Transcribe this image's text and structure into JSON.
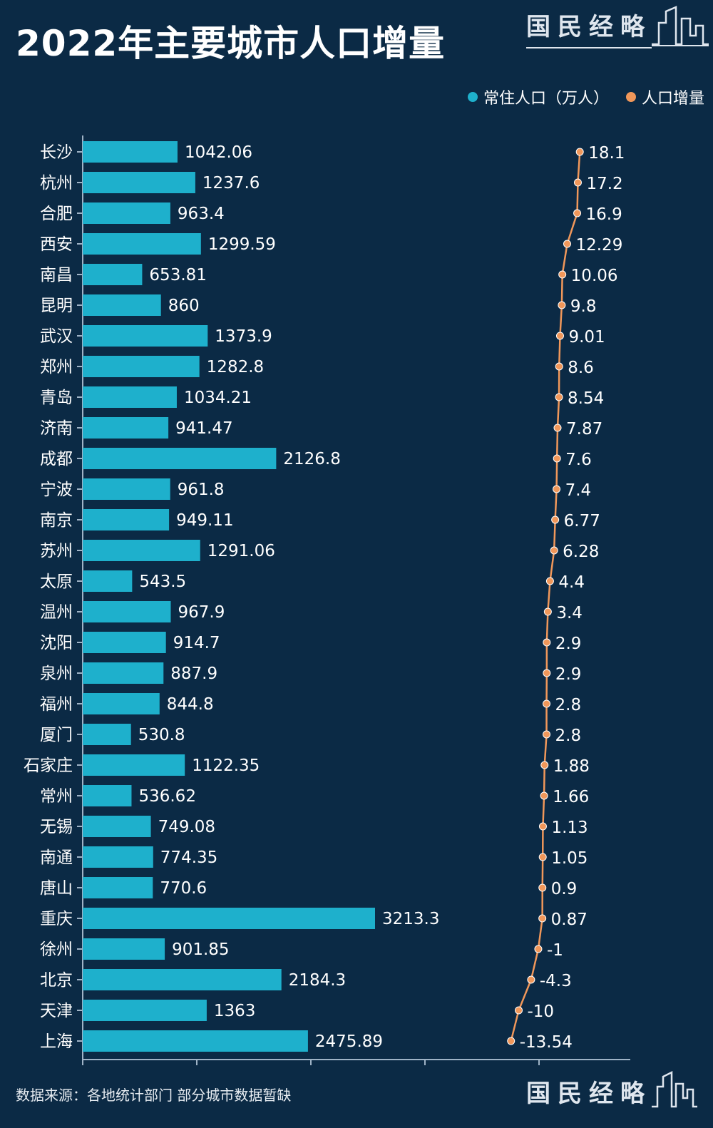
{
  "title": "2022年主要城市人口增量",
  "brand": "国民经略",
  "source": "数据来源：各地统计部门 部分城市数据暂缺",
  "colors": {
    "background": "#0b2a45",
    "bar": "#1eb0cc",
    "line": "#f0975a",
    "axis": "#9fb3c6"
  },
  "chart_data": {
    "type": "bar",
    "orientation": "horizontal",
    "legend_position": "top-right",
    "grid": false,
    "categories": [
      "长沙",
      "杭州",
      "合肥",
      "西安",
      "南昌",
      "昆明",
      "武汉",
      "郑州",
      "青岛",
      "济南",
      "成都",
      "宁波",
      "南京",
      "苏州",
      "太原",
      "温州",
      "沈阳",
      "泉州",
      "福州",
      "厦门",
      "石家庄",
      "常州",
      "无锡",
      "南通",
      "唐山",
      "重庆",
      "徐州",
      "北京",
      "天津",
      "上海"
    ],
    "series": [
      {
        "name": "常住人口（万人）",
        "type": "bar",
        "value_labels": [
          "1042.06",
          "1237.6",
          "963.4",
          "1299.59",
          "653.81",
          "860",
          "1373.9",
          "1282.8",
          "1034.21",
          "941.47",
          "2126.8",
          "961.8",
          "949.11",
          "1291.06",
          "543.5",
          "967.9",
          "914.7",
          "887.9",
          "844.8",
          "530.8",
          "1122.35",
          "536.62",
          "749.08",
          "774.35",
          "770.6",
          "3213.3",
          "901.85",
          "2184.3",
          "1363",
          "2475.89"
        ],
        "values": [
          1042.06,
          1237.6,
          963.4,
          1299.59,
          653.81,
          860,
          1373.9,
          1282.8,
          1034.21,
          941.47,
          2126.8,
          961.8,
          949.11,
          1291.06,
          543.5,
          967.9,
          914.7,
          887.9,
          844.8,
          530.8,
          1122.35,
          536.62,
          749.08,
          774.35,
          770.6,
          3213.3,
          901.85,
          2184.3,
          1363,
          2475.89
        ]
      },
      {
        "name": "人口增量",
        "type": "line",
        "value_labels": [
          "18.1",
          "17.2",
          "16.9",
          "12.29",
          "10.06",
          "9.8",
          "9.01",
          "8.6",
          "8.54",
          "7.87",
          "7.6",
          "7.4",
          "6.77",
          "6.28",
          "4.4",
          "3.4",
          "2.9",
          "2.9",
          "2.8",
          "2.8",
          "1.88",
          "1.66",
          "1.13",
          "1.05",
          "0.9",
          "0.87",
          "-1",
          "-4.3",
          "-10",
          "-13.54"
        ],
        "values": [
          18.1,
          17.2,
          16.9,
          12.29,
          10.06,
          9.8,
          9.01,
          8.6,
          8.54,
          7.87,
          7.6,
          7.4,
          6.77,
          6.28,
          4.4,
          3.4,
          2.9,
          2.9,
          2.8,
          2.8,
          1.88,
          1.66,
          1.13,
          1.05,
          0.9,
          0.87,
          -1,
          -4.3,
          -10,
          -13.54
        ]
      }
    ]
  }
}
